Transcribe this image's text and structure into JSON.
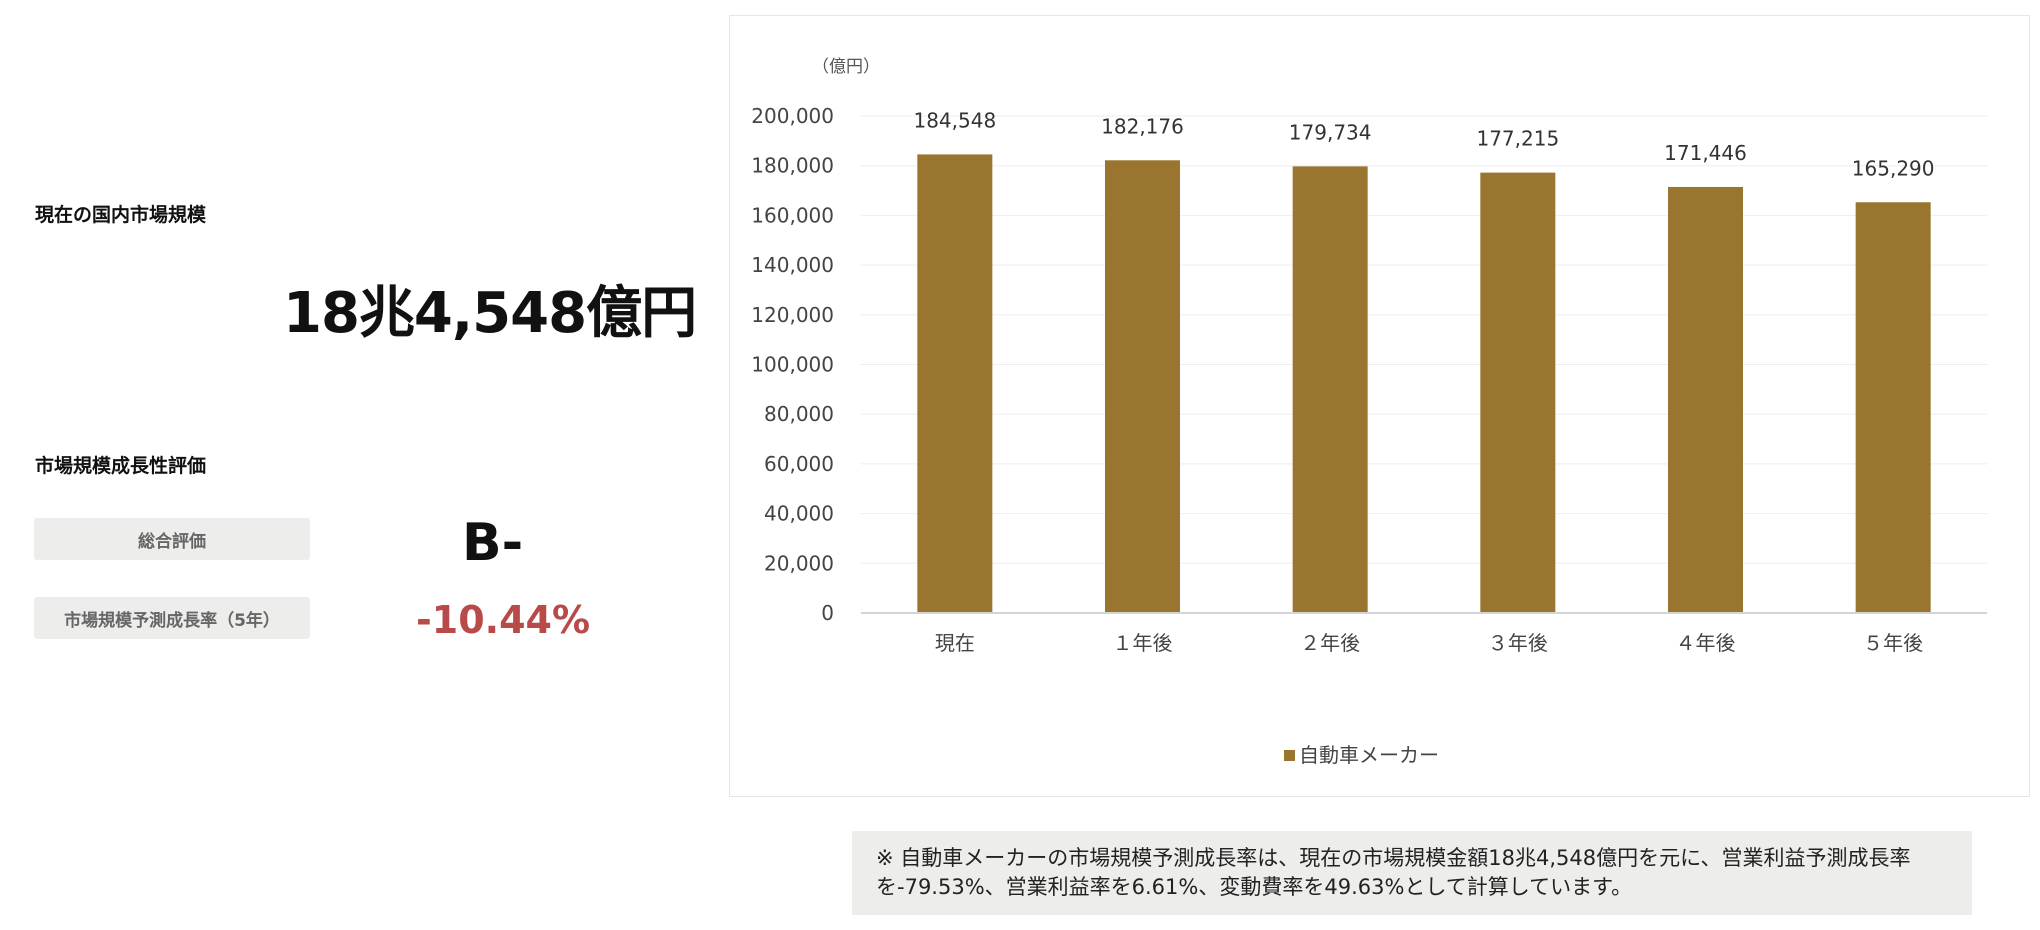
{
  "summary": {
    "market_size_label": "現在の国内市場規模",
    "market_size_value": "18兆4,548億円",
    "growth_section_label": "市場規模成長性評価",
    "overall_label": "総合評価",
    "overall_grade": "B-",
    "growth_rate_label": "市場規模予測成長率（5年）",
    "growth_rate_value": "-10.44%"
  },
  "colors": {
    "bar": "#9a7530",
    "rate_negative": "#b84a4a",
    "grid": "#eeeeee",
    "label_bg": "#ededeb"
  },
  "chart_data": {
    "type": "bar",
    "unit_label": "（億円）",
    "categories": [
      "現在",
      "１年後",
      "２年後",
      "３年後",
      "４年後",
      "５年後"
    ],
    "series": [
      {
        "name": "自動車メーカー",
        "values": [
          184548,
          182176,
          179734,
          177215,
          171446,
          165290
        ]
      }
    ],
    "data_labels": [
      "184,548",
      "182,176",
      "179,734",
      "177,215",
      "171,446",
      "165,290"
    ],
    "y_ticks": [
      "0",
      "20,000",
      "40,000",
      "60,000",
      "80,000",
      "100,000",
      "120,000",
      "140,000",
      "160,000",
      "180,000",
      "200,000"
    ],
    "ylim": [
      0,
      200000
    ],
    "y_step": 20000,
    "grid": true,
    "legend_position": "bottom"
  },
  "note": "※ 自動車メーカーの市場規模予測成長率は、現在の市場規模金額18兆4,548億円を元に、営業利益予測成長率を-79.53%、営業利益率を6.61%、変動費率を49.63%として計算しています。"
}
